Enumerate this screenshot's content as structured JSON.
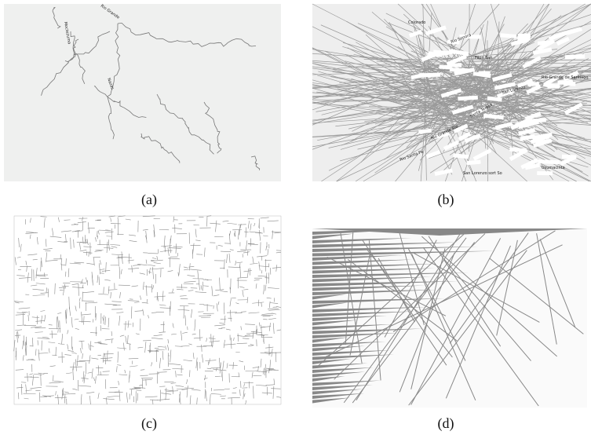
{
  "figure": {
    "panels": [
      {
        "caption": "(a)",
        "labels": [
          "Rio Grande",
          "Moctezuma",
          "Nazas"
        ]
      },
      {
        "caption": "(b)",
        "labels": [
          "Colorado",
          "Rio Sonora",
          "Filon San",
          "San Lorenzo",
          "Rio Grande de Santiago",
          "Usumacinta",
          "Rio Santa Fe",
          "San Lorenzo sort So",
          "Rio Grande Rio",
          "Santa Teresa"
        ]
      },
      {
        "caption": "(c)"
      },
      {
        "caption": "(d)"
      }
    ]
  }
}
